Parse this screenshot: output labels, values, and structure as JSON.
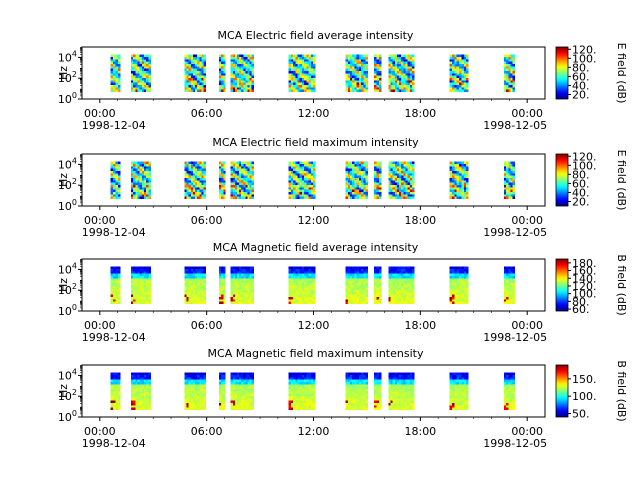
{
  "chart_data": [
    {
      "type": "heatmap",
      "title": "MCA  Electric field average intensity",
      "ylabel": "Hz",
      "colorbar_label": "E field (dB)",
      "colorbar_ticks": [
        "20.",
        "40.",
        "60.",
        "80.",
        "100.",
        "120."
      ],
      "colorbar_range": [
        10,
        125
      ],
      "yticks": [
        {
          "base": "10",
          "exp": "0"
        },
        {
          "base": "10",
          "exp": "2"
        },
        {
          "base": "10",
          "exp": "4"
        }
      ],
      "ylim_hz": [
        1,
        100000
      ],
      "coverage_hz": [
        5,
        20000
      ],
      "style": "efield"
    },
    {
      "type": "heatmap",
      "title": "MCA  Electric field maximum intensity",
      "ylabel": "Hz",
      "colorbar_label": "E field (dB)",
      "colorbar_ticks": [
        "20.",
        "40.",
        "60.",
        "80.",
        "100.",
        "120."
      ],
      "colorbar_range": [
        10,
        125
      ],
      "yticks": [
        {
          "base": "10",
          "exp": "0"
        },
        {
          "base": "10",
          "exp": "2"
        },
        {
          "base": "10",
          "exp": "4"
        }
      ],
      "ylim_hz": [
        1,
        100000
      ],
      "coverage_hz": [
        5,
        20000
      ],
      "style": "efield"
    },
    {
      "type": "heatmap",
      "title": "MCA  Magnetic field average intensity",
      "ylabel": "Hz",
      "colorbar_label": "B field (dB)",
      "colorbar_ticks": [
        "60.",
        "80.",
        "100.",
        "120.",
        "140.",
        "160.",
        "180."
      ],
      "colorbar_range": [
        55,
        190
      ],
      "yticks": [
        {
          "base": "10",
          "exp": "0"
        },
        {
          "base": "10",
          "exp": "2"
        },
        {
          "base": "10",
          "exp": "4"
        }
      ],
      "ylim_hz": [
        1,
        100000
      ],
      "coverage_hz": [
        5,
        20000
      ],
      "style": "bfield"
    },
    {
      "type": "heatmap",
      "title": "MCA  Magnetic field maximum intensity",
      "ylabel": "Hz",
      "colorbar_label": "B field (dB)",
      "colorbar_ticks": [
        "50.",
        "100.",
        "150."
      ],
      "colorbar_range": [
        40,
        190
      ],
      "yticks": [
        {
          "base": "10",
          "exp": "0"
        },
        {
          "base": "10",
          "exp": "2"
        },
        {
          "base": "10",
          "exp": "4"
        }
      ],
      "ylim_hz": [
        1,
        100000
      ],
      "coverage_hz": [
        5,
        20000
      ],
      "style": "bfield"
    }
  ],
  "xaxis": {
    "ticks": [
      "00:00",
      "06:00",
      "12:00",
      "18:00",
      "00:00"
    ],
    "tick_hours": [
      0,
      6,
      12,
      18,
      24
    ],
    "date_start": "1998-12-04",
    "date_end": "1998-12-05",
    "range_hours": [
      -1,
      25
    ]
  },
  "data_intervals_hours": [
    [
      0.6,
      1.15
    ],
    [
      1.75,
      2.85
    ],
    [
      4.75,
      5.95
    ],
    [
      6.7,
      7.05
    ],
    [
      7.35,
      8.65
    ],
    [
      10.6,
      12.1
    ],
    [
      13.8,
      15.05
    ],
    [
      15.4,
      15.8
    ],
    [
      16.2,
      17.65
    ],
    [
      19.65,
      20.7
    ],
    [
      22.7,
      23.3
    ]
  ]
}
